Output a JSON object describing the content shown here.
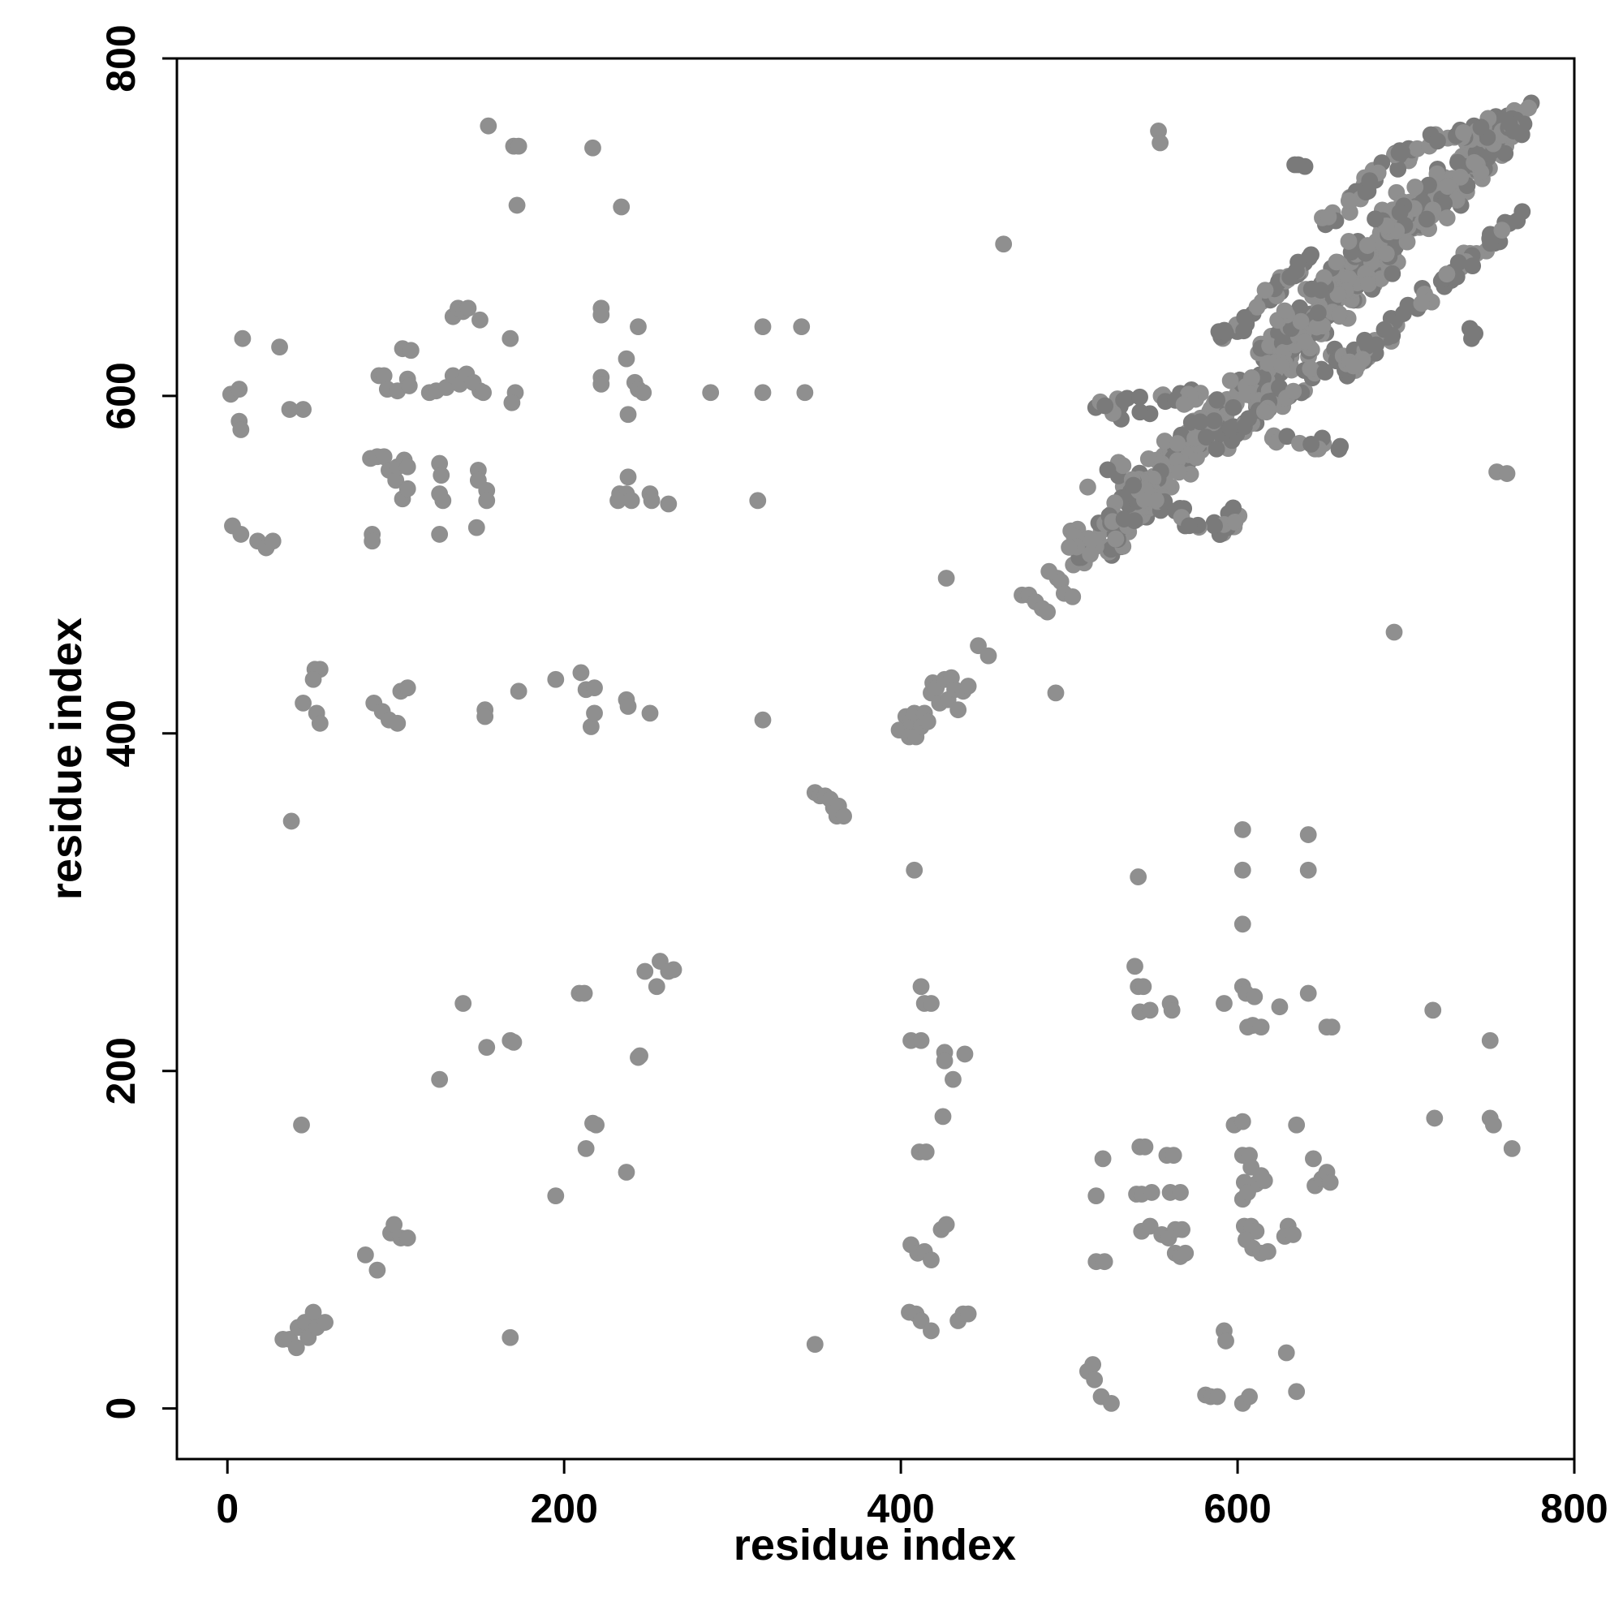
{
  "chart_data": {
    "type": "scatter",
    "title": "",
    "xlabel": "residue index",
    "ylabel": "residue index",
    "xlim": [
      -30,
      800
    ],
    "ylim": [
      -30,
      800
    ],
    "xticks": [
      0,
      200,
      400,
      600,
      800
    ],
    "yticks": [
      0,
      200,
      400,
      600,
      800
    ],
    "xtick_labels": [
      "0",
      "200",
      "400",
      "600",
      "800"
    ],
    "ytick_labels": [
      "0",
      "200",
      "400",
      "600",
      "800"
    ],
    "grid": false,
    "legend": "none",
    "point_color": "#8f8f8f",
    "dense_point_color": "#7a7a7a",
    "points": [
      [
        155,
        760
      ],
      [
        170,
        748
      ],
      [
        173,
        748
      ],
      [
        172,
        713
      ],
      [
        217,
        747
      ],
      [
        234,
        712
      ],
      [
        461,
        690
      ],
      [
        553,
        757
      ],
      [
        554,
        750
      ],
      [
        9,
        634
      ],
      [
        31,
        629
      ],
      [
        2,
        601
      ],
      [
        7,
        604
      ],
      [
        7,
        585
      ],
      [
        8,
        580
      ],
      [
        37,
        592
      ],
      [
        45,
        592
      ],
      [
        90,
        612
      ],
      [
        93,
        612
      ],
      [
        95,
        604
      ],
      [
        101,
        603
      ],
      [
        104,
        628
      ],
      [
        109,
        627
      ],
      [
        107,
        610
      ],
      [
        108,
        606
      ],
      [
        120,
        602
      ],
      [
        124,
        603
      ],
      [
        130,
        605
      ],
      [
        134,
        612
      ],
      [
        138,
        607
      ],
      [
        142,
        613
      ],
      [
        146,
        608
      ],
      [
        150,
        603
      ],
      [
        152,
        602
      ],
      [
        134,
        647
      ],
      [
        137,
        652
      ],
      [
        140,
        650
      ],
      [
        143,
        652
      ],
      [
        150,
        645
      ],
      [
        168,
        634
      ],
      [
        171,
        602
      ],
      [
        169,
        596
      ],
      [
        222,
        611
      ],
      [
        222,
        607
      ],
      [
        222,
        652
      ],
      [
        222,
        648
      ],
      [
        237,
        622
      ],
      [
        244,
        641
      ],
      [
        242,
        608
      ],
      [
        244,
        604
      ],
      [
        247,
        602
      ],
      [
        238,
        589
      ],
      [
        287,
        602
      ],
      [
        318,
        641
      ],
      [
        318,
        602
      ],
      [
        341,
        641
      ],
      [
        343,
        602
      ],
      [
        85,
        563
      ],
      [
        89,
        564
      ],
      [
        93,
        564
      ],
      [
        96,
        556
      ],
      [
        100,
        550
      ],
      [
        101,
        558
      ],
      [
        105,
        562
      ],
      [
        107,
        558
      ],
      [
        104,
        539
      ],
      [
        107,
        545
      ],
      [
        126,
        560
      ],
      [
        127,
        553
      ],
      [
        126,
        542
      ],
      [
        128,
        538
      ],
      [
        126,
        518
      ],
      [
        149,
        556
      ],
      [
        149,
        550
      ],
      [
        154,
        544
      ],
      [
        154,
        538
      ],
      [
        148,
        522
      ],
      [
        233,
        542
      ],
      [
        237,
        542
      ],
      [
        238,
        552
      ],
      [
        232,
        538
      ],
      [
        240,
        538
      ],
      [
        251,
        542
      ],
      [
        252,
        538
      ],
      [
        262,
        536
      ],
      [
        315,
        538
      ],
      [
        3,
        523
      ],
      [
        8,
        518
      ],
      [
        18,
        514
      ],
      [
        23,
        510
      ],
      [
        27,
        514
      ],
      [
        86,
        518
      ],
      [
        86,
        514
      ],
      [
        52,
        438
      ],
      [
        55,
        438
      ],
      [
        51,
        432
      ],
      [
        45,
        418
      ],
      [
        53,
        412
      ],
      [
        55,
        406
      ],
      [
        87,
        418
      ],
      [
        92,
        413
      ],
      [
        96,
        408
      ],
      [
        101,
        406
      ],
      [
        103,
        425
      ],
      [
        107,
        427
      ],
      [
        153,
        414
      ],
      [
        153,
        410
      ],
      [
        173,
        425
      ],
      [
        195,
        432
      ],
      [
        210,
        436
      ],
      [
        213,
        426
      ],
      [
        218,
        427
      ],
      [
        216,
        404
      ],
      [
        218,
        412
      ],
      [
        237,
        420
      ],
      [
        238,
        416
      ],
      [
        251,
        412
      ],
      [
        318,
        408
      ],
      [
        38,
        348
      ],
      [
        44,
        168
      ],
      [
        140,
        240
      ],
      [
        154,
        214
      ],
      [
        168,
        218
      ],
      [
        170,
        217
      ],
      [
        126,
        195
      ],
      [
        195,
        126
      ],
      [
        209,
        246
      ],
      [
        212,
        246
      ],
      [
        213,
        154
      ],
      [
        217,
        169
      ],
      [
        219,
        168
      ],
      [
        237,
        140
      ],
      [
        245,
        209
      ],
      [
        248,
        259
      ],
      [
        255,
        250
      ],
      [
        257,
        265
      ],
      [
        262,
        259
      ],
      [
        265,
        260
      ],
      [
        244,
        208
      ],
      [
        82,
        91
      ],
      [
        89,
        82
      ],
      [
        97,
        104
      ],
      [
        99,
        109
      ],
      [
        103,
        101
      ],
      [
        107,
        101
      ],
      [
        33,
        41
      ],
      [
        37,
        41
      ],
      [
        41,
        36
      ],
      [
        42,
        48
      ],
      [
        46,
        51
      ],
      [
        48,
        42
      ],
      [
        51,
        57
      ],
      [
        53,
        48
      ],
      [
        58,
        51
      ],
      [
        168,
        42
      ],
      [
        349,
        38
      ],
      [
        406,
        218
      ],
      [
        412,
        250
      ],
      [
        414,
        240
      ],
      [
        418,
        240
      ],
      [
        412,
        218
      ],
      [
        426,
        211
      ],
      [
        426,
        206
      ],
      [
        431,
        195
      ],
      [
        438,
        210
      ],
      [
        425,
        173
      ],
      [
        411,
        152
      ],
      [
        415,
        152
      ],
      [
        406,
        97
      ],
      [
        410,
        92
      ],
      [
        414,
        93
      ],
      [
        418,
        88
      ],
      [
        424,
        106
      ],
      [
        427,
        109
      ],
      [
        405,
        57
      ],
      [
        409,
        56
      ],
      [
        412,
        52
      ],
      [
        418,
        46
      ],
      [
        434,
        52
      ],
      [
        437,
        56
      ],
      [
        440,
        56
      ],
      [
        408,
        319
      ],
      [
        539,
        262
      ],
      [
        541,
        250
      ],
      [
        544,
        250
      ],
      [
        542,
        235
      ],
      [
        548,
        236
      ],
      [
        560,
        240
      ],
      [
        561,
        236
      ],
      [
        541,
        315
      ],
      [
        603,
        343
      ],
      [
        603,
        319
      ],
      [
        603,
        287
      ],
      [
        603,
        250
      ],
      [
        605,
        246
      ],
      [
        610,
        244
      ],
      [
        609,
        227
      ],
      [
        606,
        226
      ],
      [
        614,
        226
      ],
      [
        592,
        240
      ],
      [
        625,
        238
      ],
      [
        642,
        340
      ],
      [
        642,
        319
      ],
      [
        642,
        246
      ],
      [
        653,
        226
      ],
      [
        656,
        226
      ],
      [
        716,
        236
      ],
      [
        750,
        218
      ],
      [
        520,
        148
      ],
      [
        516,
        126
      ],
      [
        542,
        155
      ],
      [
        545,
        155
      ],
      [
        540,
        127
      ],
      [
        543,
        127
      ],
      [
        549,
        128
      ],
      [
        558,
        150
      ],
      [
        562,
        150
      ],
      [
        560,
        128
      ],
      [
        566,
        128
      ],
      [
        543,
        105
      ],
      [
        548,
        108
      ],
      [
        555,
        103
      ],
      [
        559,
        101
      ],
      [
        563,
        106
      ],
      [
        567,
        106
      ],
      [
        563,
        92
      ],
      [
        566,
        90
      ],
      [
        569,
        92
      ],
      [
        516,
        87
      ],
      [
        521,
        87
      ],
      [
        598,
        168
      ],
      [
        603,
        170
      ],
      [
        603,
        150
      ],
      [
        607,
        150
      ],
      [
        604,
        134
      ],
      [
        608,
        143
      ],
      [
        611,
        133
      ],
      [
        614,
        138
      ],
      [
        616,
        135
      ],
      [
        603,
        124
      ],
      [
        606,
        128
      ],
      [
        604,
        108
      ],
      [
        608,
        108
      ],
      [
        611,
        105
      ],
      [
        605,
        100
      ],
      [
        609,
        95
      ],
      [
        614,
        92
      ],
      [
        618,
        93
      ],
      [
        630,
        108
      ],
      [
        628,
        102
      ],
      [
        633,
        103
      ],
      [
        635,
        168
      ],
      [
        645,
        148
      ],
      [
        646,
        132
      ],
      [
        650,
        136
      ],
      [
        653,
        140
      ],
      [
        655,
        134
      ],
      [
        717,
        172
      ],
      [
        750,
        172
      ],
      [
        752,
        168
      ],
      [
        763,
        154
      ],
      [
        511,
        22
      ],
      [
        514,
        26
      ],
      [
        515,
        17
      ],
      [
        519,
        7
      ],
      [
        525,
        3
      ],
      [
        581,
        8
      ],
      [
        584,
        7
      ],
      [
        588,
        7
      ],
      [
        592,
        46
      ],
      [
        593,
        40
      ],
      [
        603,
        3
      ],
      [
        607,
        7
      ],
      [
        629,
        33
      ],
      [
        635,
        10
      ],
      [
        427,
        492
      ],
      [
        446,
        452
      ],
      [
        452,
        446
      ],
      [
        492,
        424
      ],
      [
        693,
        460
      ],
      [
        754,
        555
      ],
      [
        760,
        554
      ],
      [
        399,
        402
      ],
      [
        403,
        410
      ],
      [
        406,
        407
      ],
      [
        405,
        398
      ],
      [
        409,
        398
      ],
      [
        408,
        412
      ],
      [
        412,
        404
      ],
      [
        414,
        412
      ],
      [
        416,
        407
      ],
      [
        418,
        424
      ],
      [
        419,
        430
      ],
      [
        421,
        427
      ],
      [
        423,
        418
      ],
      [
        426,
        432
      ],
      [
        430,
        433
      ],
      [
        428,
        420
      ],
      [
        432,
        426
      ],
      [
        434,
        414
      ],
      [
        437,
        425
      ],
      [
        440,
        428
      ],
      [
        349,
        365
      ],
      [
        352,
        363
      ],
      [
        355,
        363
      ],
      [
        358,
        361
      ],
      [
        360,
        356
      ],
      [
        363,
        357
      ],
      [
        362,
        351
      ],
      [
        366,
        351
      ],
      [
        472,
        482
      ],
      [
        476,
        482
      ],
      [
        480,
        478
      ],
      [
        484,
        474
      ],
      [
        487,
        472
      ],
      [
        488,
        496
      ],
      [
        493,
        492
      ],
      [
        495,
        490
      ],
      [
        497,
        483
      ],
      [
        502,
        481
      ],
      [
        501,
        520
      ],
      [
        505,
        521
      ],
      [
        507,
        512
      ],
      [
        509,
        501
      ],
      [
        511,
        546
      ]
    ],
    "clusters": [
      {
        "start": [
          508,
          505
        ],
        "end": [
          768,
          768
        ],
        "count": 560,
        "spread": 10,
        "dense": 0.35
      },
      {
        "start": [
          518,
          590
        ],
        "end": [
          575,
          600
        ],
        "count": 26,
        "spread": 6,
        "dense": 0.5
      },
      {
        "start": [
          585,
          630
        ],
        "end": [
          645,
          680
        ],
        "count": 40,
        "spread": 5,
        "dense": 0.5
      },
      {
        "start": [
          650,
          700
        ],
        "end": [
          705,
          750
        ],
        "count": 44,
        "spread": 5,
        "dense": 0.6
      },
      {
        "start": [
          715,
          750
        ],
        "end": [
          768,
          760
        ],
        "count": 28,
        "spread": 5,
        "dense": 0.7
      },
      {
        "start": [
          590,
          520
        ],
        "end": [
          600,
          530
        ],
        "count": 16,
        "spread": 5,
        "dense": 0.5
      },
      {
        "start": [
          585,
          568
        ],
        "end": [
          660,
          625
        ],
        "count": 44,
        "spread": 5,
        "dense": 0.5
      },
      {
        "start": [
          660,
          615
        ],
        "end": [
          720,
          665
        ],
        "count": 36,
        "spread": 5,
        "dense": 0.5
      },
      {
        "start": [
          720,
          665
        ],
        "end": [
          768,
          710
        ],
        "count": 30,
        "spread": 5,
        "dense": 0.6
      },
      {
        "start": [
          620,
          575
        ],
        "end": [
          660,
          570
        ],
        "count": 12,
        "spread": 4,
        "dense": 0.5
      },
      {
        "start": [
          525,
          560
        ],
        "end": [
          578,
          520
        ],
        "count": 26,
        "spread": 5,
        "dense": 0.5
      },
      {
        "start": [
          625,
          640
        ],
        "end": [
          700,
          715
        ],
        "count": 40,
        "spread": 6,
        "dense": 0.4
      }
    ],
    "extra_dense_points": [
      [
        634,
        737
      ],
      [
        636,
        737
      ],
      [
        640,
        736
      ],
      [
        738,
        640
      ],
      [
        739,
        634
      ],
      [
        741,
        637
      ]
    ]
  }
}
